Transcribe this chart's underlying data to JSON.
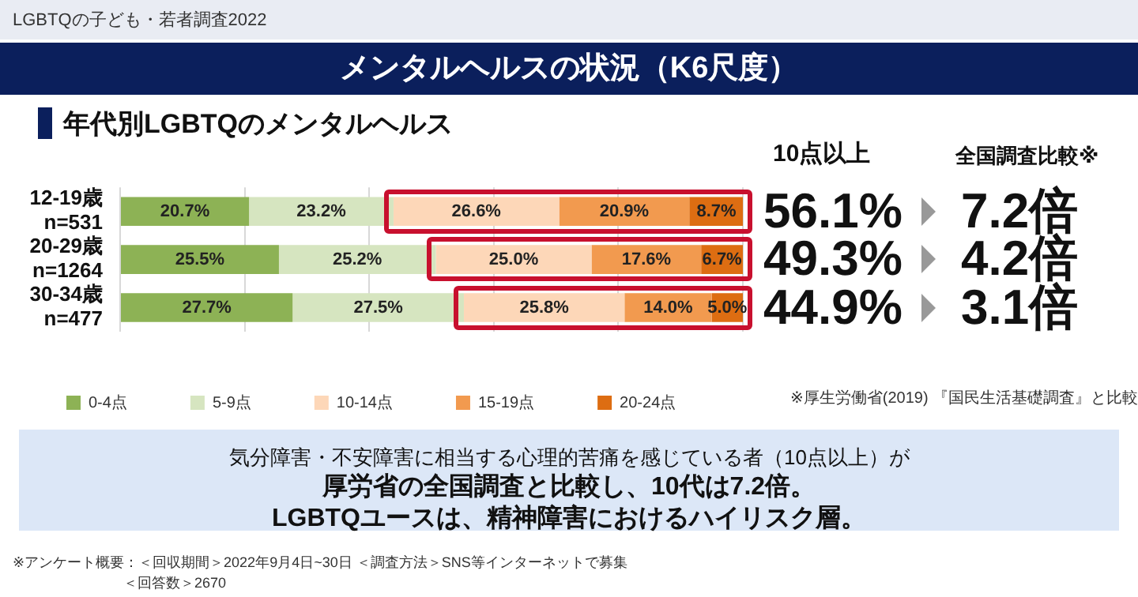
{
  "chart_data": {
    "type": "bar",
    "orientation": "horizontal",
    "stacked": true,
    "title": "メンタルヘルスの状況（K6尺度）",
    "subtitle": "年代別LGBTQのメンタルヘルス",
    "categories": [
      "12-19歳\nn=531",
      "20-29歳\nn=1264",
      "30-34歳\nn=477"
    ],
    "series": [
      {
        "name": "0-4点",
        "color": "#8db255",
        "values": [
          20.7,
          25.5,
          27.7
        ],
        "value_labels": [
          "20.7%",
          "25.5%",
          "27.7%"
        ]
      },
      {
        "name": "5-9点",
        "color": "#d6e5c0",
        "values": [
          23.2,
          25.2,
          27.5
        ],
        "value_labels": [
          "23.2%",
          "25.2%",
          "27.5%"
        ]
      },
      {
        "name": "10-14点",
        "color": "#fdd7b8",
        "values": [
          26.6,
          25.0,
          25.8
        ],
        "value_labels": [
          "26.6%",
          "25.0%",
          "25.8%"
        ]
      },
      {
        "name": "15-19点",
        "color": "#f29a4f",
        "values": [
          20.9,
          17.6,
          14.0
        ],
        "value_labels": [
          "20.9%",
          "17.6%",
          "14.0%"
        ]
      },
      {
        "name": "20-24点",
        "color": "#dd6d12",
        "values": [
          8.7,
          6.7,
          5.0
        ],
        "value_labels": [
          "8.7%",
          "6.7%",
          "5.0%"
        ]
      }
    ],
    "xlim": [
      0,
      100
    ],
    "xticks": [
      {
        "value": 0,
        "label": null
      },
      {
        "value": 20,
        "label": null
      },
      {
        "value": 40,
        "label": null
      },
      {
        "value": 60,
        "label": null
      },
      {
        "value": 80,
        "label": null
      },
      {
        "value": 100,
        "label": null
      }
    ],
    "grid": "x",
    "tick_labels": "y",
    "legend": "bottom",
    "annotations": [
      "LGBTQの子ども・若者調査2022",
      "10点以上",
      "全国調査比較※",
      "56.1%",
      "49.3%",
      "44.9%",
      "7.2倍",
      "4.2倍",
      "3.1倍",
      "※厚生労働省(2019) 『国民生活基礎調査』と比較",
      "気分障害・不安障害に相当する心理的苦痛を感じている者（10点以上）が",
      "厚労省の全国調査と比較し、10代は7.2倍。",
      "LGBTQユースは、精神障害におけるハイリスク層。",
      "※アンケート概要：＜回収期間＞2022年9月4日~30日 ＜調査方法＞SNS等インターネットで募集",
      "＜回答数＞2670"
    ]
  }
}
